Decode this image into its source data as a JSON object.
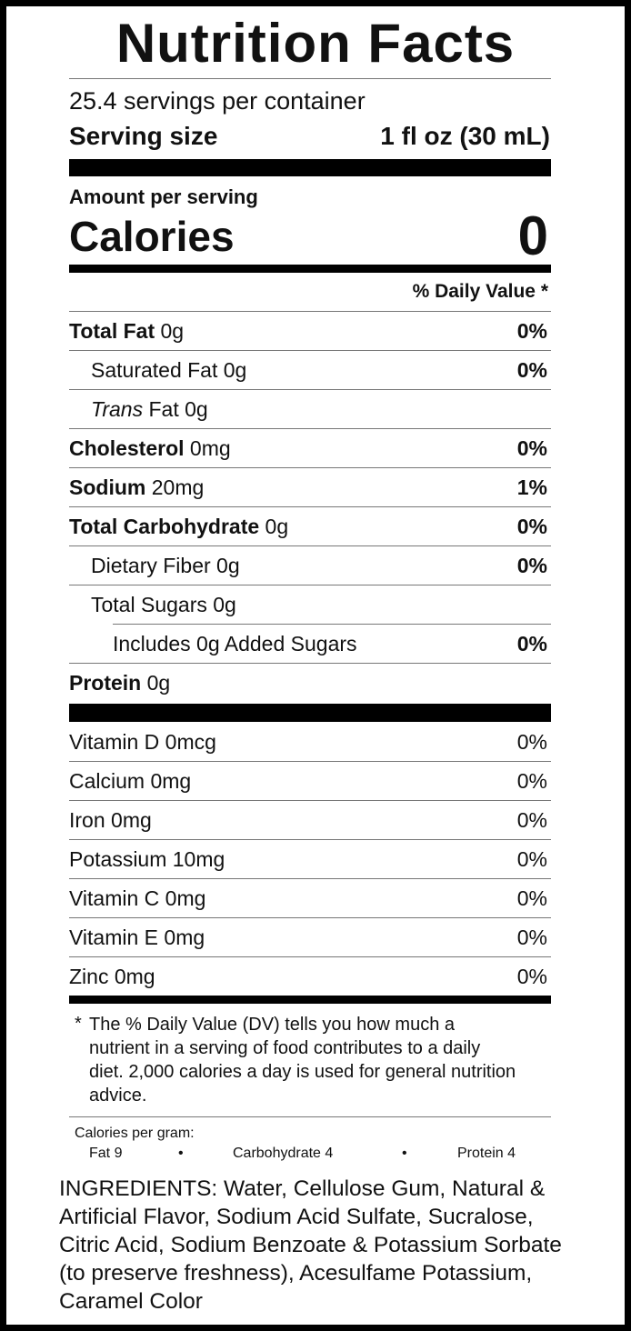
{
  "title": "Nutrition Facts",
  "servings": "25.4 servings per container",
  "serving_size": {
    "label": "Serving size",
    "value": "1 fl oz (30 mL)"
  },
  "amount_per_serving": "Amount per serving",
  "calories": {
    "label": "Calories",
    "value": "0"
  },
  "dv_header": "% Daily Value *",
  "nutrients": [
    {
      "name": "Total Fat",
      "amount": "0g",
      "dv": "0%",
      "bold": true,
      "indent": 0
    },
    {
      "name": "Saturated Fat",
      "amount": "0g",
      "dv": "0%",
      "indent": 1
    },
    {
      "italic": "Trans",
      "name": "Fat",
      "amount": "0g",
      "indent": 1
    },
    {
      "name": "Cholesterol",
      "amount": "0mg",
      "dv": "0%",
      "bold": true,
      "indent": 0
    },
    {
      "name": "Sodium",
      "amount": "20mg",
      "dv": "1%",
      "bold": true,
      "indent": 0
    },
    {
      "name": "Total Carbohydrate",
      "amount": "0g",
      "dv": "0%",
      "bold": true,
      "indent": 0
    },
    {
      "name": "Dietary Fiber",
      "amount": "0g",
      "dv": "0%",
      "indent": 1
    },
    {
      "name": "Total Sugars",
      "amount": "0g",
      "indent": 1
    },
    {
      "name": "Includes 0g Added Sugars",
      "dv": "0%",
      "indent": 2
    },
    {
      "name": "Protein",
      "amount": "0g",
      "bold": true,
      "indent": 0
    }
  ],
  "vitamins": [
    {
      "name": "Vitamin D 0mcg",
      "dv": "0%"
    },
    {
      "name": "Calcium 0mg",
      "dv": "0%"
    },
    {
      "name": "Iron 0mg",
      "dv": "0%"
    },
    {
      "name": "Potassium 10mg",
      "dv": "0%"
    },
    {
      "name": "Vitamin C 0mg",
      "dv": "0%"
    },
    {
      "name": "Vitamin E 0mg",
      "dv": "0%"
    },
    {
      "name": "Zinc 0mg",
      "dv": "0%"
    }
  ],
  "footnote": {
    "mark": "*",
    "text": "The % Daily Value (DV) tells you how much a nutrient in a serving of food contributes to a daily diet. 2,000 calories a day is used for general nutrition advice."
  },
  "calories_per_gram": {
    "label": "Calories per gram:",
    "separator": "•",
    "items": [
      "Fat 9",
      "Carbohydrate 4",
      "Protein 4"
    ]
  },
  "ingredients": "INGREDIENTS: Water, Cellulose Gum, Natural & Artificial Flavor, Sodium Acid Sulfate, Sucralose, Citric Acid, Sodium Benzoate & Potassium Sorbate (to preserve freshness), Acesulfame Potassium, Caramel Color"
}
